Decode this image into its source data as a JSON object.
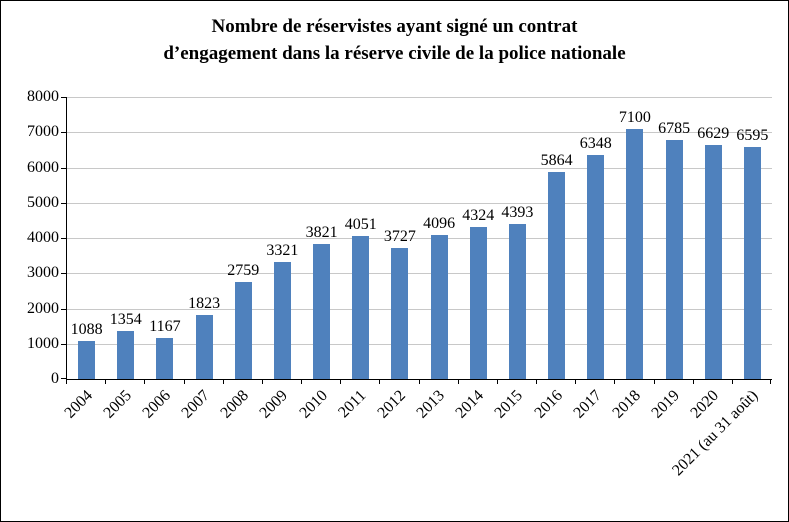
{
  "frame": {
    "background_color": "#ffffff",
    "border_color": "#000000"
  },
  "chart_data": {
    "type": "bar",
    "title": "Nombre de réservistes ayant signé un contrat d’engagement dans la réserve civile de la police nationale",
    "title_lines": [
      "Nombre de réservistes ayant signé un contrat",
      "d’engagement dans la réserve civile de la police nationale"
    ],
    "xlabel": "",
    "ylabel": "",
    "categories": [
      "2004",
      "2005",
      "2006",
      "2007",
      "2008",
      "2009",
      "2010",
      "2011",
      "2012",
      "2013",
      "2014",
      "2015",
      "2016",
      "2017",
      "2018",
      "2019",
      "2020",
      "2021 (au 31 août)"
    ],
    "values": [
      1088,
      1354,
      1167,
      1823,
      2759,
      3321,
      3821,
      4051,
      3727,
      4096,
      4324,
      4393,
      5864,
      6348,
      7100,
      6785,
      6629,
      6595
    ],
    "yticks": [
      0,
      1000,
      2000,
      3000,
      4000,
      5000,
      6000,
      7000,
      8000
    ],
    "ylim": [
      0,
      8000
    ],
    "grid": true,
    "legend": "none",
    "value_labels": true,
    "bar_color": "#4f81bd",
    "gridline_color": "#c8c8c8",
    "axis_color": "#000000",
    "text_color": "#000000"
  }
}
